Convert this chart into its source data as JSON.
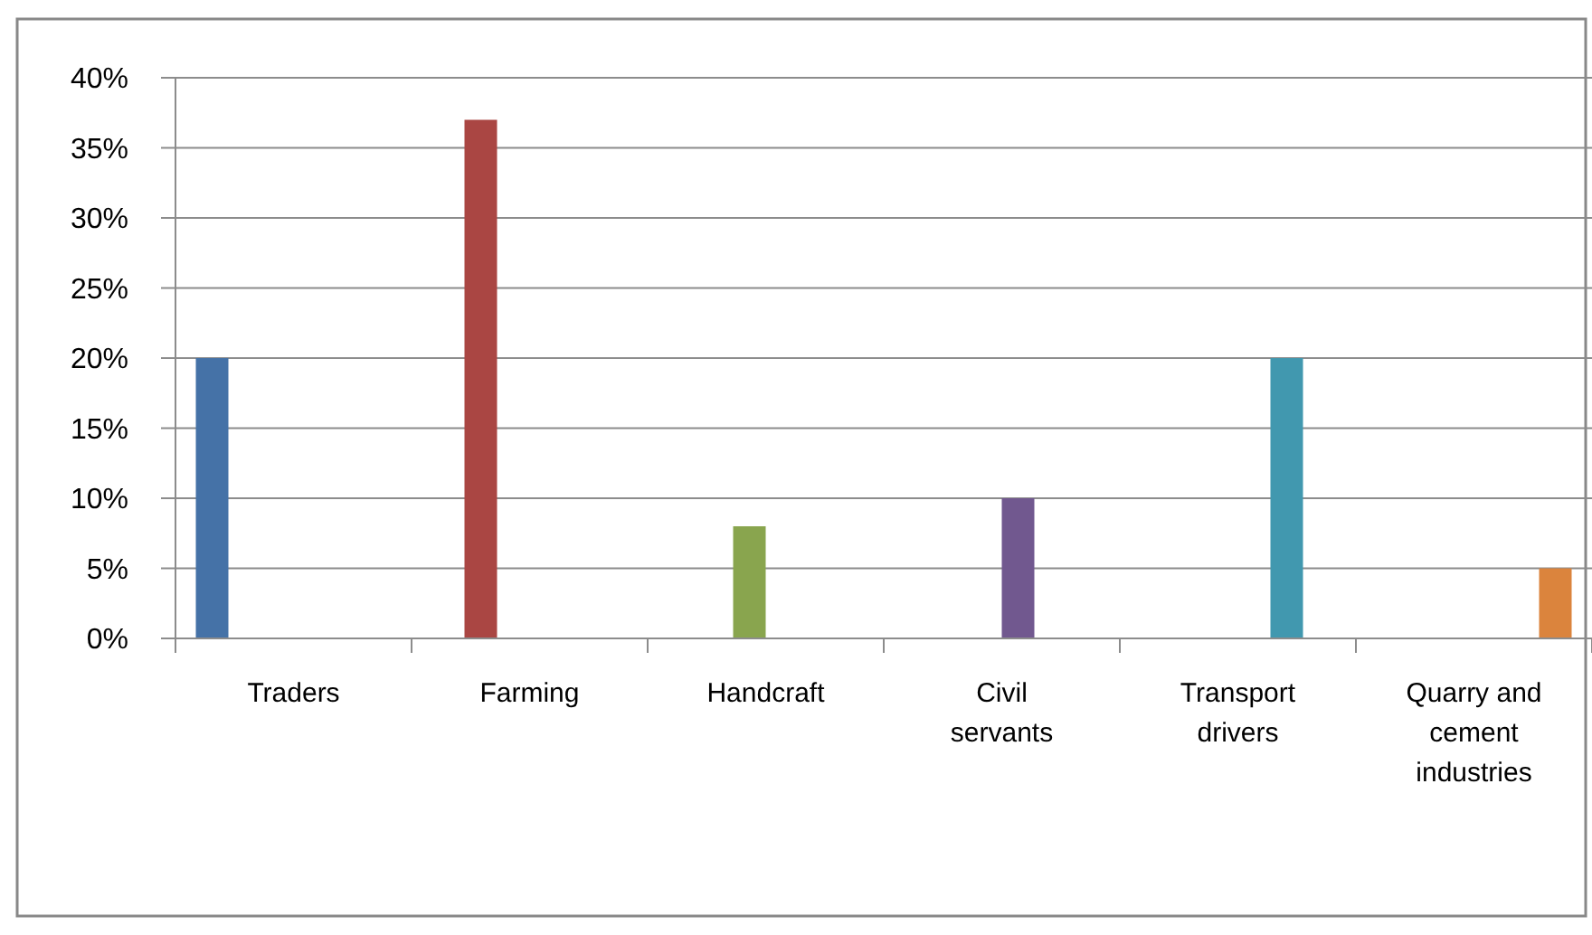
{
  "chart_data": {
    "type": "bar",
    "categories": [
      "Traders",
      "Farming",
      "Handcraft",
      "Civil servants",
      "Transport drivers",
      "Quarry and cement industries"
    ],
    "series": [
      {
        "color": "#4572a7",
        "values": [
          20,
          null,
          null,
          null,
          null,
          null
        ]
      },
      {
        "color": "#aa4643",
        "values": [
          null,
          37,
          null,
          null,
          null,
          null
        ]
      },
      {
        "color": "#89a54e",
        "values": [
          null,
          null,
          8,
          null,
          null,
          null
        ]
      },
      {
        "color": "#71588f",
        "values": [
          null,
          null,
          null,
          10,
          null,
          null
        ]
      },
      {
        "color": "#4198af",
        "values": [
          null,
          null,
          null,
          null,
          20,
          null
        ]
      },
      {
        "color": "#db843d",
        "values": [
          null,
          null,
          null,
          null,
          null,
          5
        ]
      }
    ],
    "ylim": [
      0,
      40
    ],
    "yticks": [
      {
        "value": 0,
        "label": "0%"
      },
      {
        "value": 5,
        "label": "5%"
      },
      {
        "value": 10,
        "label": "10%"
      },
      {
        "value": 15,
        "label": "15%"
      },
      {
        "value": 20,
        "label": "20%"
      },
      {
        "value": 25,
        "label": "25%"
      },
      {
        "value": 30,
        "label": "30%"
      },
      {
        "value": 35,
        "label": "35%"
      },
      {
        "value": 40,
        "label": "40%"
      }
    ],
    "grid": "y"
  }
}
